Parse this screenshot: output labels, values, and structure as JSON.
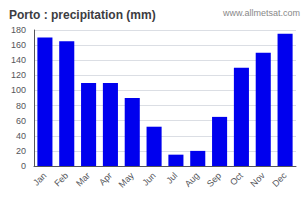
{
  "chart_data": {
    "type": "bar",
    "title": "Porto : precipitation (mm)",
    "categories": [
      "Jan",
      "Feb",
      "Mar",
      "Apr",
      "May",
      "Jun",
      "Jul",
      "Aug",
      "Sep",
      "Oct",
      "Nov",
      "Dec"
    ],
    "values": [
      170,
      165,
      110,
      110,
      90,
      52,
      15,
      20,
      65,
      130,
      150,
      175
    ],
    "color": "#0000EE",
    "ylim": [
      0,
      180
    ],
    "yticks": [
      0,
      20,
      40,
      60,
      80,
      100,
      120,
      140,
      160,
      180
    ],
    "grid": true,
    "annotations": [
      "www.allmetsat.com"
    ]
  }
}
